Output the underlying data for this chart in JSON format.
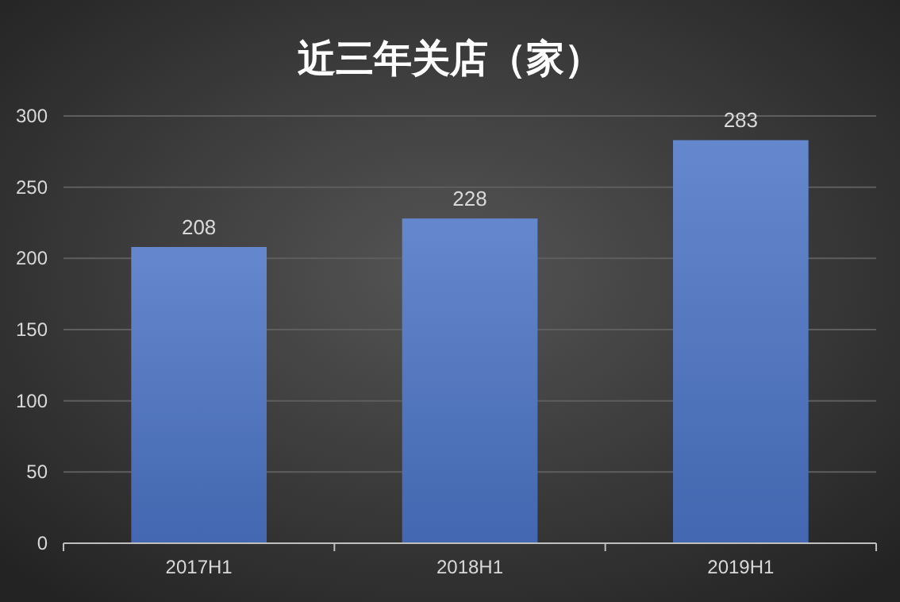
{
  "chart_data": {
    "type": "bar",
    "title": "近三年关店（家）",
    "categories": [
      "2017H1",
      "2018H1",
      "2019H1"
    ],
    "values": [
      208,
      228,
      283
    ],
    "color": "#4a72c4",
    "ylim": [
      0,
      300
    ],
    "yticks": [
      0,
      50,
      100,
      150,
      200,
      250,
      300
    ],
    "grid": "y",
    "data_labels": true
  }
}
